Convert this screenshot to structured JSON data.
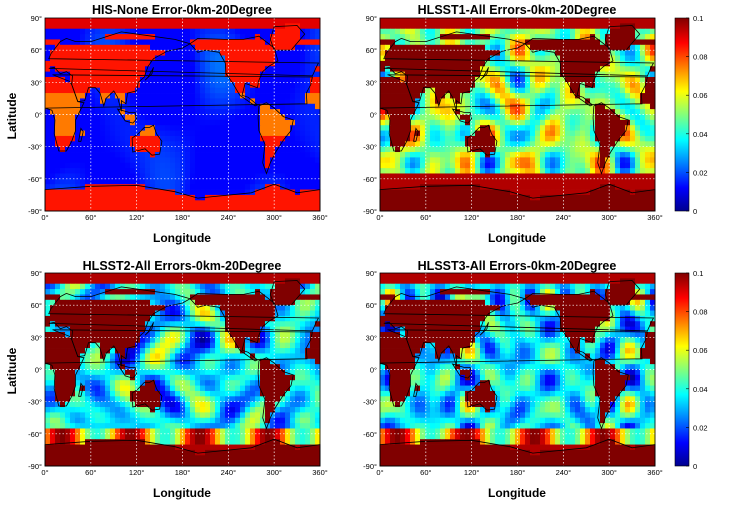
{
  "chart_data": [
    {
      "type": "heatmap",
      "title": "HIS-None Error-0km-20Degree",
      "xlabel": "Longitude",
      "ylabel": "Latitude",
      "xlim": [
        0,
        360
      ],
      "ylim": [
        -90,
        90
      ],
      "xticks": [
        "0°",
        "60°",
        "120°",
        "180°",
        "240°",
        "300°",
        "360°"
      ],
      "yticks": [
        "90°",
        "60°",
        "30°",
        "0°",
        "-30°",
        "-60°",
        "-90°"
      ],
      "grid": true,
      "colorbar": false
    },
    {
      "type": "heatmap",
      "title": "HLSST1-All Errors-0km-20Degree",
      "xlabel": "Longitude",
      "ylabel": "",
      "xlim": [
        0,
        360
      ],
      "ylim": [
        -90,
        90
      ],
      "xticks": [
        "0°",
        "60°",
        "120°",
        "180°",
        "240°",
        "300°",
        "360°"
      ],
      "yticks": [
        "90°",
        "60°",
        "30°",
        "0°",
        "-30°",
        "-60°",
        "-90°"
      ],
      "grid": true,
      "colorbar": true,
      "colorbar_ticks": [
        "0.1",
        "0.08",
        "0.06",
        "0.04",
        "0.02",
        "0"
      ],
      "color_range": [
        0,
        0.1
      ]
    },
    {
      "type": "heatmap",
      "title": "HLSST2-All Errors-0km-20Degree",
      "xlabel": "Longitude",
      "ylabel": "Latitude",
      "xlim": [
        0,
        360
      ],
      "ylim": [
        -90,
        90
      ],
      "xticks": [
        "0°",
        "60°",
        "120°",
        "180°",
        "240°",
        "300°",
        "360°"
      ],
      "yticks": [
        "90°",
        "60°",
        "30°",
        "0°",
        "-30°",
        "-60°",
        "-90°"
      ],
      "grid": true,
      "colorbar": false
    },
    {
      "type": "heatmap",
      "title": "HLSST3-All Errors-0km-20Degree",
      "xlabel": "Longitude",
      "ylabel": "",
      "xlim": [
        0,
        360
      ],
      "ylim": [
        -90,
        90
      ],
      "xticks": [
        "0°",
        "60°",
        "120°",
        "180°",
        "240°",
        "300°",
        "360°"
      ],
      "yticks": [
        "90°",
        "60°",
        "30°",
        "0°",
        "-30°",
        "-60°",
        "-90°"
      ],
      "grid": true,
      "colorbar": true,
      "colorbar_ticks": [
        "0.1",
        "0.08",
        "0.06",
        "0.04",
        "0.02",
        "0"
      ],
      "color_range": [
        0,
        0.1
      ]
    }
  ],
  "colors": {
    "colormap": [
      "#00008f",
      "#0000ff",
      "#00ffff",
      "#ffff00",
      "#ff0000",
      "#800000"
    ],
    "land_saturated": "#8b0000",
    "coastline": "#000000",
    "grid": "#ffffff"
  }
}
